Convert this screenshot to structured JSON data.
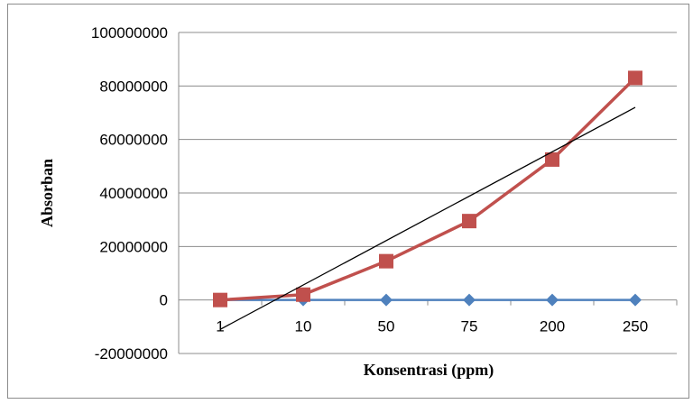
{
  "chart_data": {
    "type": "line",
    "title": "",
    "xlabel": "Konsentrasi (ppm)",
    "ylabel": "Absorban",
    "categories": [
      "1",
      "10",
      "50",
      "75",
      "200",
      "250"
    ],
    "ylim": [
      -20000000,
      100000000
    ],
    "yticks": [
      -20000000,
      0,
      20000000,
      40000000,
      60000000,
      80000000,
      100000000
    ],
    "ytick_labels": [
      "-20000000",
      "0",
      "20000000",
      "40000000",
      "60000000",
      "80000000",
      "100000000"
    ],
    "grid": true,
    "legend": "none",
    "series": [
      {
        "color": "#4f81bd",
        "marker": "diamond",
        "values": [
          0,
          0,
          0,
          0,
          0,
          0
        ]
      },
      {
        "color": "#c0504d",
        "marker": "square",
        "values": [
          0,
          2000000,
          14500000,
          29500000,
          52500000,
          83000000
        ]
      }
    ],
    "trendline": {
      "color": "#000000",
      "style": "linear",
      "start": -11000000,
      "end": 72000000
    }
  }
}
